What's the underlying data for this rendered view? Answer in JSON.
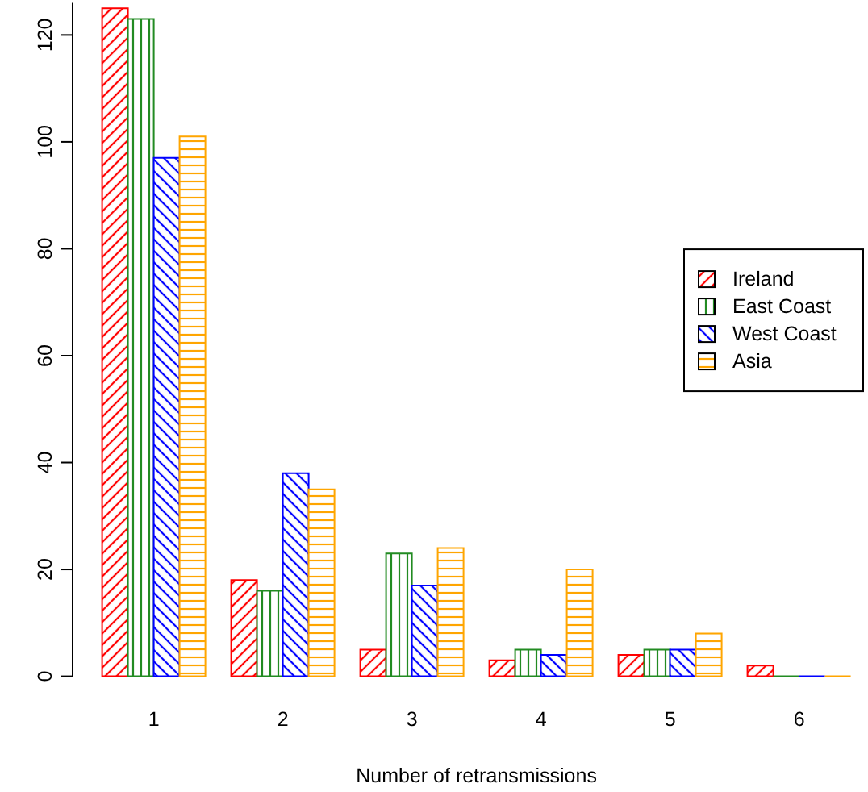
{
  "chart_data": {
    "type": "bar",
    "xlabel": "Number of retransmissions",
    "categories": [
      "1",
      "2",
      "3",
      "4",
      "5",
      "6"
    ],
    "series": [
      {
        "name": "Ireland",
        "color": "#ff0000",
        "values": [
          125,
          18,
          5,
          3,
          4,
          2
        ]
      },
      {
        "name": "East Coast",
        "color": "#228b22",
        "values": [
          123,
          16,
          23,
          5,
          5,
          0
        ]
      },
      {
        "name": "West Coast",
        "color": "#0000ff",
        "values": [
          97,
          38,
          17,
          4,
          5,
          0
        ]
      },
      {
        "name": "Asia",
        "color": "#ffa500",
        "values": [
          101,
          35,
          24,
          20,
          8,
          0
        ]
      }
    ],
    "ylim": [
      0,
      126
    ],
    "yticks": [
      0,
      20,
      40,
      60,
      80,
      100,
      120
    ],
    "legend": "right"
  }
}
